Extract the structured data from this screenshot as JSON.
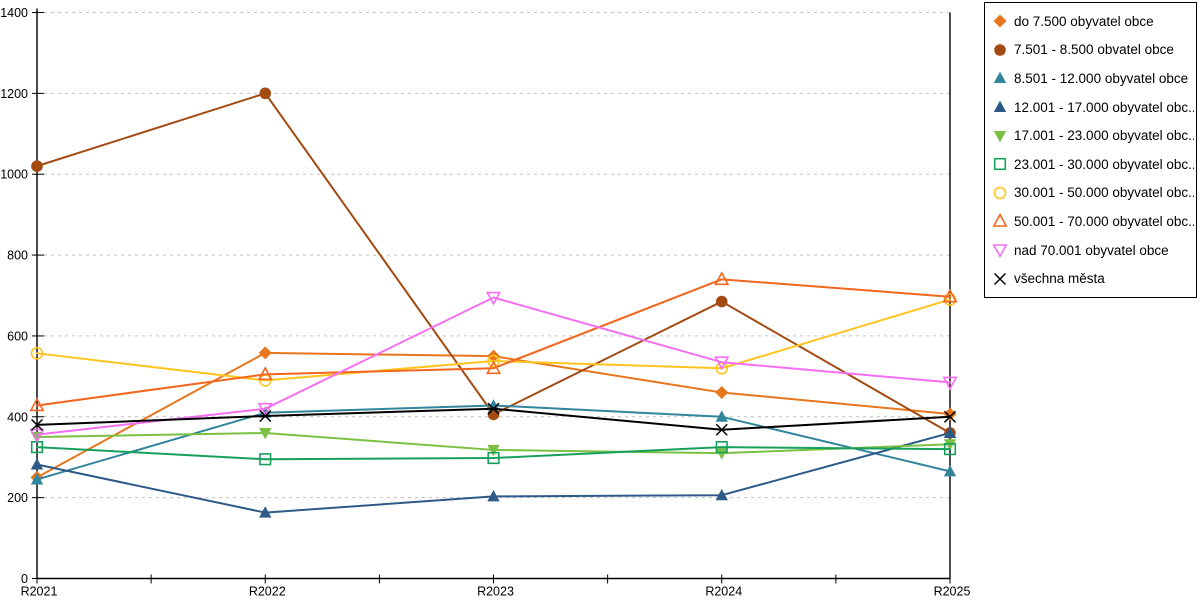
{
  "chart_data": {
    "type": "line",
    "title": "",
    "xlabel": "",
    "ylabel": "",
    "categories": [
      "R2021",
      "R2022",
      "R2023",
      "R2024",
      "R2025"
    ],
    "ylim": [
      0,
      1400
    ],
    "y_tick_step": 200,
    "y_tick_labels": [
      "0",
      "200",
      "400",
      "600",
      "800",
      "1000",
      "1200",
      "1400"
    ],
    "grid": "horizontal-dashed",
    "legend_position": "right-top-box",
    "series": [
      {
        "name": "do 7.500 obyvatel obce",
        "legend_label": "do 7.500 obyvatel obce",
        "marker": "diamond",
        "color": "#E8761C",
        "values": [
          250,
          558,
          550,
          460,
          407
        ]
      },
      {
        "name": "7.501 - 8.500 obvatel obce",
        "legend_label": "7.501 - 8.500 obvatel obce",
        "marker": "circle",
        "color": "#A24A11",
        "values": [
          1020,
          1200,
          406,
          685,
          360
        ]
      },
      {
        "name": "8.501 - 12.000 obyvatel obce",
        "legend_label": "8.501 - 12.000 obyvatel obce",
        "marker": "triangle-up",
        "color": "#31859C",
        "values": [
          245,
          410,
          428,
          400,
          265
        ]
      },
      {
        "name": "12.001 - 17.000 obyvatel obce",
        "legend_label": "12.001 - 17.000 obyvatel obc...",
        "marker": "triangle-up",
        "color": "#2E5A88",
        "values": [
          282,
          163,
          203,
          206,
          360
        ]
      },
      {
        "name": "17.001 - 23.000 obyvatel obce",
        "legend_label": "17.001 - 23.000 obyvatel obc...",
        "marker": "triangle-down",
        "color": "#7AC143",
        "values": [
          350,
          360,
          318,
          310,
          332
        ]
      },
      {
        "name": "23.001 - 30.000 obyvatel obce",
        "legend_label": "23.001 - 30.000 obyvatel obc...",
        "marker": "square-open",
        "color": "#17A05C",
        "values": [
          325,
          295,
          298,
          325,
          320
        ]
      },
      {
        "name": "30.001 - 50.000 obyvatel obce",
        "legend_label": "30.001 - 50.000 obyvatel obc...",
        "marker": "circle-open",
        "color": "#FFC41E",
        "values": [
          557,
          490,
          538,
          520,
          690
        ]
      },
      {
        "name": "50.001 - 70.000 obyvatel obce",
        "legend_label": "50.001 - 70.000 obyvatel obc...",
        "marker": "triangle-up-open",
        "color": "#F2661E",
        "values": [
          428,
          505,
          520,
          740,
          697
        ]
      },
      {
        "name": "nad 70.001 obyvatel obce",
        "legend_label": "nad 70.001 obyvatel obce",
        "marker": "triangle-down-open",
        "color": "#F66EF2",
        "values": [
          356,
          420,
          695,
          535,
          485
        ]
      },
      {
        "name": "všechna města",
        "legend_label": "všechna města",
        "marker": "x",
        "color": "#000000",
        "values": [
          380,
          402,
          420,
          368,
          400
        ]
      }
    ]
  },
  "colors": {
    "background": "#FFFFFF",
    "grid": "#C0C0C0",
    "axis": "#000000",
    "legend_border": "#000000",
    "text": "#000000"
  }
}
